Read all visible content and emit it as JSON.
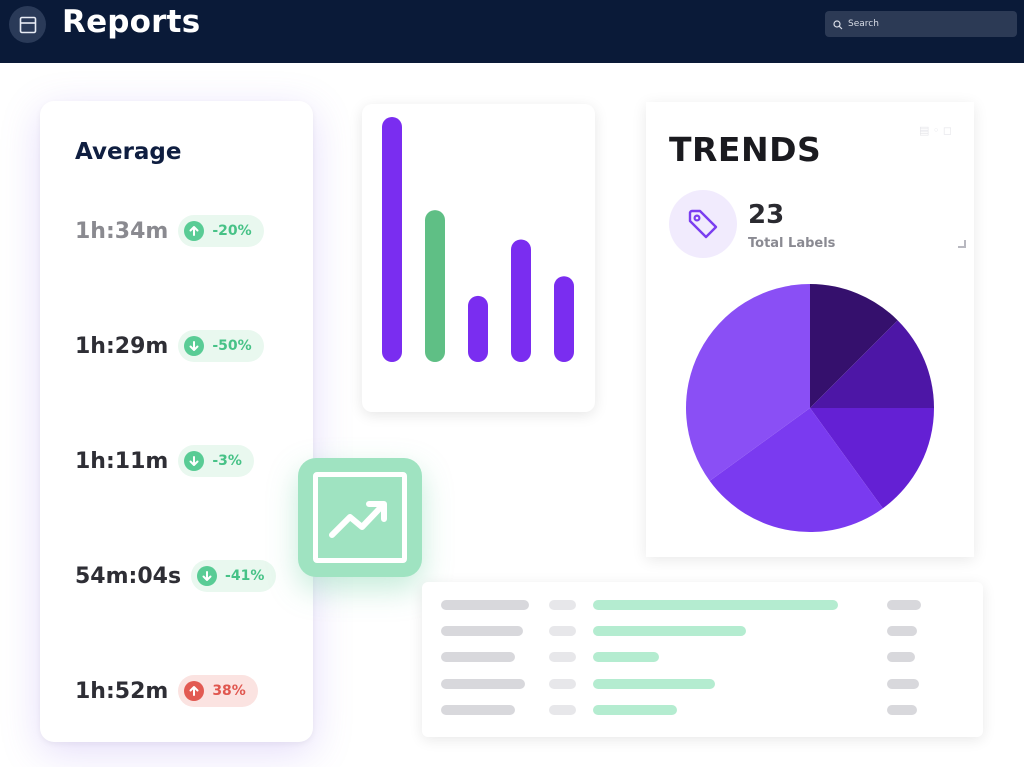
{
  "header": {
    "title": "Reports",
    "search_placeholder": "Search",
    "icons": {
      "app": "layout-panel-icon",
      "search": "search-icon"
    }
  },
  "average": {
    "title": "Average",
    "items": [
      {
        "value": "1h:34m",
        "change": "-20%",
        "direction": "up",
        "tone": "green",
        "muted": true
      },
      {
        "value": "1h:29m",
        "change": "-50%",
        "direction": "down",
        "tone": "green",
        "muted": false
      },
      {
        "value": "1h:11m",
        "change": "-3%",
        "direction": "down",
        "tone": "green",
        "muted": false
      },
      {
        "value": "54m:04s",
        "change": "-41%",
        "direction": "down",
        "tone": "green",
        "muted": false
      },
      {
        "value": "1h:52m",
        "change": "38%",
        "direction": "up",
        "tone": "red",
        "muted": false
      }
    ]
  },
  "trend_tile": {
    "icon": "trending-up-icon"
  },
  "bar_chart": {
    "bars": [
      {
        "value": 100,
        "color": "#7a2df0"
      },
      {
        "value": 62,
        "color": "#5fbf85"
      },
      {
        "value": 27,
        "color": "#7a2df0"
      },
      {
        "value": 50,
        "color": "#7a2df0"
      },
      {
        "value": 35,
        "color": "#7a2df0"
      }
    ]
  },
  "trends": {
    "title": "TRENDS",
    "count": "23",
    "count_label": "Total Labels",
    "tag_icon": "tag-icon",
    "pie": [
      {
        "value": 12.5,
        "color": "#35106d"
      },
      {
        "value": 12.5,
        "color": "#4d16a6"
      },
      {
        "value": 15,
        "color": "#6420d4"
      },
      {
        "value": 25,
        "color": "#7a3af0"
      },
      {
        "value": 35,
        "color": "#8a4ff5"
      }
    ]
  },
  "table": {
    "rows": [
      {
        "bar": 0.96
      },
      {
        "bar": 0.6
      },
      {
        "bar": 0.26
      },
      {
        "bar": 0.48
      },
      {
        "bar": 0.33
      }
    ]
  },
  "colors": {
    "navy": "#0a1a38",
    "purple": "#7a2df0",
    "green": "#5fbf85",
    "red": "#e0574f"
  }
}
